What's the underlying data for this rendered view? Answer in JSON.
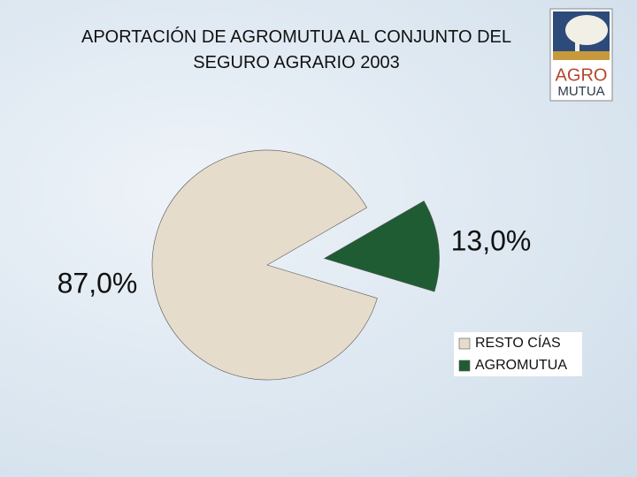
{
  "chart_data": {
    "type": "pie",
    "title": "APORTACIÓN DE AGROMUTUA AL CONJUNTO DEL SEGURO AGRARIO 2003",
    "categories": [
      "RESTO CÍAS",
      "AGROMUTUA"
    ],
    "values": [
      87,
      13
    ],
    "value_labels": [
      "87,0%",
      "13,0%"
    ],
    "colors": [
      "#e6dccb",
      "#1f5c34"
    ],
    "legend": "bottom-right"
  },
  "logo": {
    "line1": "AGRO",
    "line2": "MUTUA"
  }
}
